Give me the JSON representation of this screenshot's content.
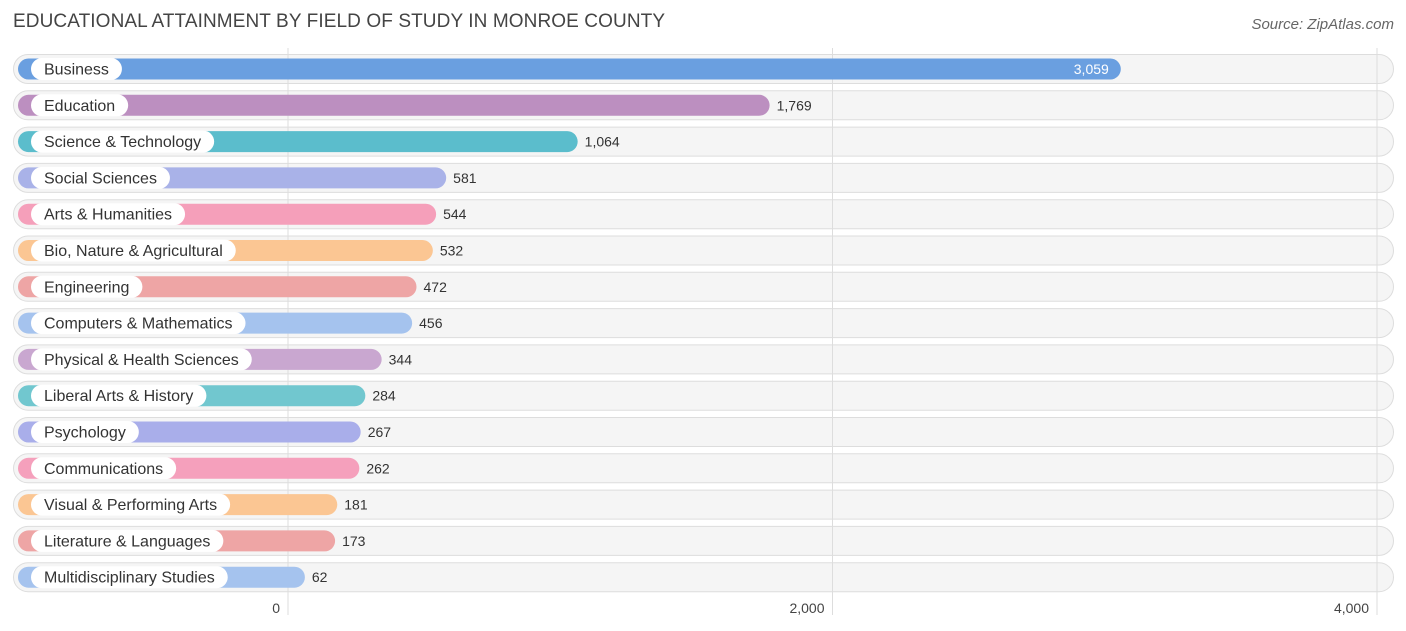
{
  "header": {
    "title": "EDUCATIONAL ATTAINMENT BY FIELD OF STUDY IN MONROE COUNTY",
    "source": "Source: ZipAtlas.com"
  },
  "chart_data": {
    "type": "bar",
    "orientation": "horizontal",
    "title": "EDUCATIONAL ATTAINMENT BY FIELD OF STUDY IN MONROE COUNTY",
    "xlabel": "",
    "ylabel": "",
    "xlim": [
      0,
      4000
    ],
    "ticks": [
      {
        "value": 0,
        "label": "0"
      },
      {
        "value": 2000,
        "label": "2,000"
      },
      {
        "value": 4000,
        "label": "4,000"
      }
    ],
    "grid": true,
    "categories": [
      "Business",
      "Education",
      "Science & Technology",
      "Social Sciences",
      "Arts & Humanities",
      "Bio, Nature & Agricultural",
      "Engineering",
      "Computers & Mathematics",
      "Physical & Health Sciences",
      "Liberal Arts & History",
      "Psychology",
      "Communications",
      "Visual & Performing Arts",
      "Literature & Languages",
      "Multidisciplinary Studies"
    ],
    "values": [
      3059,
      1769,
      1064,
      581,
      544,
      532,
      472,
      456,
      344,
      284,
      267,
      262,
      181,
      173,
      62
    ],
    "value_labels": [
      "3,059",
      "1,769",
      "1,064",
      "581",
      "544",
      "532",
      "472",
      "456",
      "344",
      "284",
      "267",
      "262",
      "181",
      "173",
      "62"
    ],
    "colors": [
      "#6a9fe0",
      "#bc8fc0",
      "#5bbdcc",
      "#a9b2e8",
      "#f59fba",
      "#fbc693",
      "#eea5a5",
      "#a5c3ee",
      "#c9a7d0",
      "#71c7cf",
      "#a9aeea",
      "#f5a0bc",
      "#fbc693",
      "#eea5a5",
      "#a5c3ee"
    ]
  }
}
